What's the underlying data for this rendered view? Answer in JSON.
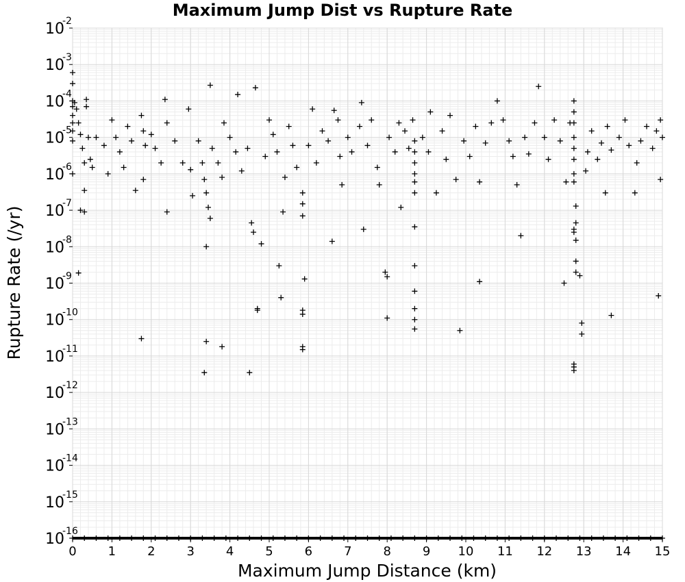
{
  "chart_data": {
    "type": "scatter",
    "title": "Maximum Jump Dist vs Rupture Rate",
    "xlabel": "Maximum Jump Distance (km)",
    "ylabel": "Rupture Rate (/yr)",
    "xlim": [
      0,
      15
    ],
    "ylim": [
      1e-16,
      0.01
    ],
    "yscale": "log",
    "grid": true,
    "marker": "+",
    "marker_color": "#000000",
    "x_ticks": [
      "0",
      "1",
      "2",
      "3",
      "4",
      "5",
      "6",
      "7",
      "8",
      "9",
      "10",
      "11",
      "12",
      "13",
      "14",
      "15"
    ],
    "y_ticks": [
      {
        "base": "10",
        "exp": "-16"
      },
      {
        "base": "10",
        "exp": "-15"
      },
      {
        "base": "10",
        "exp": "-14"
      },
      {
        "base": "10",
        "exp": "-13"
      },
      {
        "base": "10",
        "exp": "-12"
      },
      {
        "base": "10",
        "exp": "-11"
      },
      {
        "base": "10",
        "exp": "-10"
      },
      {
        "base": "10",
        "exp": "-9"
      },
      {
        "base": "10",
        "exp": "-8"
      },
      {
        "base": "10",
        "exp": "-7"
      },
      {
        "base": "10",
        "exp": "-6"
      },
      {
        "base": "10",
        "exp": "-5"
      },
      {
        "base": "10",
        "exp": "-4"
      },
      {
        "base": "10",
        "exp": "-3"
      },
      {
        "base": "10",
        "exp": "-2"
      }
    ],
    "series": [
      {
        "points": [
          [
            0.0,
            0.0006
          ],
          [
            0.0,
            0.0003
          ],
          [
            0.0,
            0.0001
          ],
          [
            0.0,
            7e-05
          ],
          [
            0.0,
            4e-05
          ],
          [
            0.0,
            2.5e-05
          ],
          [
            0.0,
            1.5e-05
          ],
          [
            0.0,
            8e-06
          ],
          [
            0.0,
            1e-06
          ],
          [
            0.05,
            9e-05
          ],
          [
            0.1,
            6e-05
          ],
          [
            0.15,
            2.5e-05
          ],
          [
            0.2,
            1.2e-05
          ],
          [
            0.25,
            5e-06
          ],
          [
            0.3,
            2e-06
          ],
          [
            0.35,
            0.00011
          ],
          [
            0.35,
            7e-05
          ],
          [
            0.3,
            3.5e-07
          ],
          [
            0.2,
            1e-07
          ],
          [
            0.3,
            9e-08
          ],
          [
            0.15,
            1.9e-09
          ],
          [
            0.4,
            1e-05
          ],
          [
            0.45,
            2.5e-06
          ],
          [
            0.5,
            1.5e-06
          ],
          [
            0.6,
            1e-05
          ],
          [
            0.8,
            6e-06
          ],
          [
            0.9,
            1e-06
          ],
          [
            1.0,
            3e-05
          ],
          [
            1.1,
            1e-05
          ],
          [
            1.2,
            4e-06
          ],
          [
            1.3,
            1.5e-06
          ],
          [
            1.4,
            2e-05
          ],
          [
            1.5,
            8e-06
          ],
          [
            1.6,
            3.5e-07
          ],
          [
            1.75,
            4e-05
          ],
          [
            1.8,
            1.5e-05
          ],
          [
            1.85,
            6e-06
          ],
          [
            1.8,
            7e-07
          ],
          [
            1.75,
            3e-11
          ],
          [
            2.0,
            1.2e-05
          ],
          [
            2.1,
            5e-06
          ],
          [
            2.25,
            2e-06
          ],
          [
            2.35,
            0.00011
          ],
          [
            2.4,
            2.5e-05
          ],
          [
            2.4,
            9e-08
          ],
          [
            2.6,
            8e-06
          ],
          [
            2.8,
            2e-06
          ],
          [
            2.95,
            6e-05
          ],
          [
            3.0,
            1.3e-06
          ],
          [
            3.05,
            2.5e-07
          ],
          [
            3.2,
            8e-06
          ],
          [
            3.3,
            2e-06
          ],
          [
            3.35,
            7e-07
          ],
          [
            3.4,
            3e-07
          ],
          [
            3.45,
            1.2e-07
          ],
          [
            3.5,
            6e-08
          ],
          [
            3.4,
            1e-08
          ],
          [
            3.4,
            2.5e-11
          ],
          [
            3.35,
            3.5e-12
          ],
          [
            3.5,
            0.00027
          ],
          [
            3.55,
            5e-06
          ],
          [
            3.7,
            2e-06
          ],
          [
            3.8,
            8e-07
          ],
          [
            3.85,
            2.5e-05
          ],
          [
            3.8,
            1.8e-11
          ],
          [
            4.0,
            1e-05
          ],
          [
            4.15,
            4e-06
          ],
          [
            4.2,
            0.00015
          ],
          [
            4.3,
            1.2e-06
          ],
          [
            4.45,
            5e-06
          ],
          [
            4.55,
            4.5e-08
          ],
          [
            4.6,
            2.5e-08
          ],
          [
            4.5,
            3.5e-12
          ],
          [
            4.65,
            0.00023
          ],
          [
            4.7,
            2e-10
          ],
          [
            4.7,
            1.8e-10
          ],
          [
            4.8,
            1.2e-08
          ],
          [
            4.9,
            3e-06
          ],
          [
            5.0,
            3e-05
          ],
          [
            5.1,
            1.2e-05
          ],
          [
            5.2,
            4e-06
          ],
          [
            5.25,
            3e-09
          ],
          [
            5.3,
            4e-10
          ],
          [
            5.35,
            9e-08
          ],
          [
            5.4,
            8e-07
          ],
          [
            5.5,
            2e-05
          ],
          [
            5.6,
            6e-06
          ],
          [
            5.7,
            1.5e-06
          ],
          [
            5.85,
            3e-07
          ],
          [
            5.85,
            1.5e-07
          ],
          [
            5.85,
            7e-08
          ],
          [
            5.9,
            1.3e-09
          ],
          [
            5.85,
            1.8e-10
          ],
          [
            5.85,
            1.4e-10
          ],
          [
            5.85,
            1.8e-11
          ],
          [
            5.85,
            1.5e-11
          ],
          [
            6.0,
            6e-06
          ],
          [
            6.1,
            6e-05
          ],
          [
            6.2,
            2e-06
          ],
          [
            6.35,
            1.5e-05
          ],
          [
            6.5,
            8e-06
          ],
          [
            6.6,
            1.4e-08
          ],
          [
            6.65,
            5.5e-05
          ],
          [
            6.75,
            3e-05
          ],
          [
            6.8,
            3e-06
          ],
          [
            6.85,
            5e-07
          ],
          [
            7.0,
            1e-05
          ],
          [
            7.1,
            4e-06
          ],
          [
            7.3,
            2e-05
          ],
          [
            7.35,
            9e-05
          ],
          [
            7.4,
            3e-08
          ],
          [
            7.5,
            6e-06
          ],
          [
            7.6,
            3e-05
          ],
          [
            7.75,
            1.5e-06
          ],
          [
            7.8,
            5e-07
          ],
          [
            7.95,
            2e-09
          ],
          [
            8.0,
            1.5e-09
          ],
          [
            8.0,
            1.1e-10
          ],
          [
            8.05,
            1e-05
          ],
          [
            8.2,
            4e-06
          ],
          [
            8.3,
            2.5e-05
          ],
          [
            8.35,
            1.2e-07
          ],
          [
            8.45,
            1.5e-05
          ],
          [
            8.55,
            5e-06
          ],
          [
            8.65,
            3e-05
          ],
          [
            8.7,
            8e-06
          ],
          [
            8.7,
            4e-06
          ],
          [
            8.7,
            2e-06
          ],
          [
            8.7,
            1e-06
          ],
          [
            8.7,
            6e-07
          ],
          [
            8.7,
            3e-07
          ],
          [
            8.7,
            3.5e-08
          ],
          [
            8.7,
            3e-09
          ],
          [
            8.7,
            6e-10
          ],
          [
            8.7,
            2e-10
          ],
          [
            8.7,
            1e-10
          ],
          [
            8.7,
            5.5e-11
          ],
          [
            8.9,
            1e-05
          ],
          [
            9.05,
            4e-06
          ],
          [
            9.1,
            5e-05
          ],
          [
            9.25,
            3e-07
          ],
          [
            9.4,
            1.5e-05
          ],
          [
            9.5,
            2.5e-06
          ],
          [
            9.6,
            4e-05
          ],
          [
            9.75,
            7e-07
          ],
          [
            9.85,
            5e-11
          ],
          [
            9.95,
            8e-06
          ],
          [
            10.1,
            3e-06
          ],
          [
            10.25,
            2e-05
          ],
          [
            10.35,
            6e-07
          ],
          [
            10.35,
            1.1e-09
          ],
          [
            10.5,
            7e-06
          ],
          [
            10.65,
            2.5e-05
          ],
          [
            10.8,
            0.0001
          ],
          [
            10.95,
            3e-05
          ],
          [
            11.1,
            8e-06
          ],
          [
            11.2,
            3e-06
          ],
          [
            11.3,
            5e-07
          ],
          [
            11.4,
            2e-08
          ],
          [
            11.5,
            1e-05
          ],
          [
            11.6,
            3.5e-06
          ],
          [
            11.75,
            2.5e-05
          ],
          [
            11.85,
            0.00025
          ],
          [
            12.0,
            1e-05
          ],
          [
            12.1,
            2.5e-06
          ],
          [
            12.25,
            3e-05
          ],
          [
            12.4,
            8e-06
          ],
          [
            12.5,
            1e-09
          ],
          [
            12.55,
            6e-07
          ],
          [
            12.65,
            2.5e-05
          ],
          [
            12.75,
            0.0001
          ],
          [
            12.75,
            5e-05
          ],
          [
            12.75,
            2.5e-05
          ],
          [
            12.75,
            1e-05
          ],
          [
            12.75,
            5e-06
          ],
          [
            12.75,
            2.5e-06
          ],
          [
            12.75,
            1e-06
          ],
          [
            12.75,
            6e-07
          ],
          [
            12.75,
            3e-08
          ],
          [
            12.75,
            2.5e-08
          ],
          [
            12.8,
            4.5e-08
          ],
          [
            12.8,
            1.5e-08
          ],
          [
            12.8,
            4e-09
          ],
          [
            12.8,
            2e-09
          ],
          [
            12.75,
            6e-12
          ],
          [
            12.75,
            5e-12
          ],
          [
            12.75,
            4e-12
          ],
          [
            12.8,
            1.3e-07
          ],
          [
            12.9,
            1.6e-09
          ],
          [
            12.95,
            8e-11
          ],
          [
            12.95,
            4e-11
          ],
          [
            13.05,
            1.2e-06
          ],
          [
            13.1,
            4e-06
          ],
          [
            13.2,
            1.5e-05
          ],
          [
            13.35,
            2.5e-06
          ],
          [
            13.45,
            7e-06
          ],
          [
            13.55,
            3e-07
          ],
          [
            13.6,
            2e-05
          ],
          [
            13.7,
            4.5e-06
          ],
          [
            13.7,
            1.3e-10
          ],
          [
            13.9,
            1e-05
          ],
          [
            14.05,
            3e-05
          ],
          [
            14.15,
            6e-06
          ],
          [
            14.3,
            3e-07
          ],
          [
            14.35,
            2e-06
          ],
          [
            14.45,
            8e-06
          ],
          [
            14.6,
            2e-05
          ],
          [
            14.75,
            5e-06
          ],
          [
            14.85,
            1.5e-05
          ],
          [
            14.9,
            4.5e-10
          ],
          [
            14.95,
            7e-07
          ],
          [
            14.95,
            3e-05
          ],
          [
            15.0,
            1e-05
          ]
        ],
        "floor_points_x": [
          0.0,
          0.3,
          0.6,
          0.9,
          1.2,
          1.5,
          1.8,
          2.1,
          2.4,
          2.7,
          3.0,
          3.3,
          3.6,
          3.9,
          4.2,
          4.5,
          4.8,
          5.1,
          5.4,
          5.7,
          6.0,
          6.3,
          6.6,
          6.9,
          7.2,
          7.5,
          7.8,
          8.1,
          8.4,
          8.7,
          9.0,
          9.3,
          9.6,
          9.9,
          10.2,
          10.5,
          10.8,
          11.1,
          11.4,
          11.7,
          12.0,
          12.3,
          12.6,
          12.9,
          13.2,
          13.5,
          13.8,
          14.1,
          14.4,
          14.7,
          15.0
        ],
        "floor_value": 1e-16
      }
    ]
  }
}
